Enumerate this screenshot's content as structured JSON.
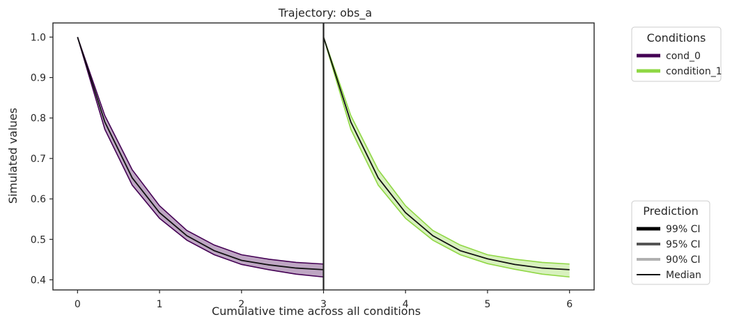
{
  "chart_data": {
    "type": "line",
    "title": "Trajectory: obs_a",
    "xlabel": "Cumulative time across all conditions",
    "ylabel": "Simulated values",
    "xlim": [
      -0.3,
      6.3
    ],
    "ylim": [
      0.375,
      1.035
    ],
    "xticks": [
      0,
      1,
      2,
      3,
      4,
      5,
      6
    ],
    "yticks": [
      0.4,
      0.5,
      0.6,
      0.7,
      0.8,
      0.9,
      1.0
    ],
    "condition_boundary_x": 3,
    "grid": false,
    "series": [
      {
        "name": "cond_0",
        "color": "#440154",
        "x": [
          0,
          0.333,
          0.667,
          1.0,
          1.333,
          1.667,
          2.0,
          2.333,
          2.667,
          3.0
        ],
        "median": [
          1.0,
          0.79,
          0.652,
          0.566,
          0.509,
          0.472,
          0.448,
          0.437,
          0.429,
          0.425
        ],
        "lower": [
          1.0,
          0.772,
          0.634,
          0.552,
          0.498,
          0.462,
          0.438,
          0.425,
          0.414,
          0.407
        ],
        "upper": [
          1.0,
          0.806,
          0.672,
          0.583,
          0.522,
          0.486,
          0.462,
          0.451,
          0.443,
          0.439
        ]
      },
      {
        "name": "condition_1",
        "color": "#8fd744",
        "x": [
          3.0,
          3.333,
          3.667,
          4.0,
          4.333,
          4.667,
          5.0,
          5.333,
          5.667,
          6.0
        ],
        "median": [
          1.0,
          0.79,
          0.652,
          0.566,
          0.509,
          0.472,
          0.452,
          0.438,
          0.429,
          0.425
        ],
        "lower": [
          1.0,
          0.772,
          0.634,
          0.552,
          0.498,
          0.462,
          0.44,
          0.426,
          0.414,
          0.407
        ],
        "upper": [
          1.0,
          0.806,
          0.672,
          0.583,
          0.522,
          0.486,
          0.462,
          0.451,
          0.443,
          0.439
        ]
      }
    ],
    "legend_conditions": {
      "title": "Conditions",
      "placement": "outside-top-right",
      "entries": [
        {
          "label": "cond_0",
          "color": "#440154"
        },
        {
          "label": "condition_1",
          "color": "#8fd744"
        }
      ]
    },
    "legend_prediction": {
      "title": "Prediction",
      "placement": "outside-bottom-right",
      "entries": [
        {
          "label": "99% CI",
          "color": "#000000",
          "width": 5
        },
        {
          "label": "95% CI",
          "color": "#555555",
          "width": 4
        },
        {
          "label": "90% CI",
          "color": "#b0b0b0",
          "width": 4
        },
        {
          "label": "Median",
          "color": "#000000",
          "width": 2
        }
      ]
    }
  }
}
